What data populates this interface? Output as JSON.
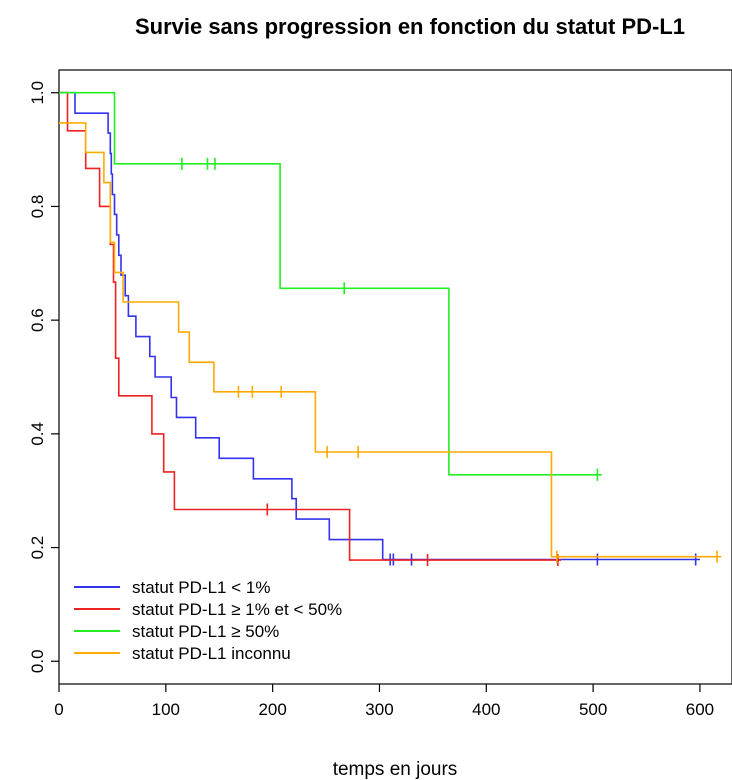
{
  "chart_data": {
    "type": "line",
    "title": "Survie sans progression en fonction du statut PD-L1",
    "xlabel": "temps en jours",
    "ylabel": "",
    "xlim": [
      0,
      630
    ],
    "ylim": [
      -0.04,
      1.04
    ],
    "x_ticks": [
      "0",
      "100",
      "200",
      "300",
      "400",
      "500",
      "600"
    ],
    "y_ticks": [
      "0.0",
      "0.2",
      "0.4",
      "0.6",
      "0.8",
      "1.0"
    ],
    "legend_position": "bottom-left",
    "series": [
      {
        "name": "statut PD-L1 < 1%",
        "color": "#3333ee",
        "steps": [
          [
            0,
            1.0
          ],
          [
            15,
            0.964
          ],
          [
            46,
            0.929
          ],
          [
            48,
            0.893
          ],
          [
            49,
            0.857
          ],
          [
            50,
            0.821
          ],
          [
            52,
            0.786
          ],
          [
            54,
            0.75
          ],
          [
            56,
            0.714
          ],
          [
            58,
            0.679
          ],
          [
            62,
            0.643
          ],
          [
            65,
            0.607
          ],
          [
            72,
            0.571
          ],
          [
            85,
            0.536
          ],
          [
            90,
            0.5
          ],
          [
            105,
            0.464
          ],
          [
            110,
            0.429
          ],
          [
            128,
            0.393
          ],
          [
            150,
            0.357
          ],
          [
            182,
            0.321
          ],
          [
            218,
            0.286
          ],
          [
            222,
            0.25
          ],
          [
            253,
            0.214
          ],
          [
            303,
            0.179
          ],
          [
            600,
            0.179
          ]
        ],
        "censored": [
          [
            310,
            0.179
          ],
          [
            313,
            0.179
          ],
          [
            330,
            0.179
          ],
          [
            504,
            0.179
          ],
          [
            596,
            0.179
          ]
        ]
      },
      {
        "name": "statut PD-L1 ≥ 1% et < 50%",
        "color": "#ee2222",
        "steps": [
          [
            0,
            1.0
          ],
          [
            8,
            0.933
          ],
          [
            25,
            0.867
          ],
          [
            38,
            0.8
          ],
          [
            48,
            0.733
          ],
          [
            51,
            0.667
          ],
          [
            53,
            0.533
          ],
          [
            56,
            0.467
          ],
          [
            87,
            0.4
          ],
          [
            98,
            0.333
          ],
          [
            108,
            0.267
          ],
          [
            272,
            0.178
          ],
          [
            470,
            0.178
          ]
        ],
        "censored": [
          [
            195,
            0.267
          ],
          [
            345,
            0.178
          ],
          [
            467,
            0.178
          ]
        ]
      },
      {
        "name": "statut PD-L1 ≥ 50%",
        "color": "#22ee22",
        "steps": [
          [
            0,
            1.0
          ],
          [
            52,
            0.875
          ],
          [
            207,
            0.656
          ],
          [
            365,
            0.328
          ],
          [
            508,
            0.328
          ]
        ],
        "censored": [
          [
            115,
            0.875
          ],
          [
            139,
            0.875
          ],
          [
            146,
            0.875
          ],
          [
            267,
            0.656
          ],
          [
            504,
            0.328
          ]
        ]
      },
      {
        "name": "statut PD-L1 inconnu",
        "color": "#ffaa00",
        "steps": [
          [
            0,
            0.947
          ],
          [
            25,
            0.895
          ],
          [
            42,
            0.842
          ],
          [
            48,
            0.737
          ],
          [
            52,
            0.684
          ],
          [
            60,
            0.632
          ],
          [
            112,
            0.579
          ],
          [
            122,
            0.526
          ],
          [
            145,
            0.474
          ],
          [
            240,
            0.368
          ],
          [
            461,
            0.184
          ],
          [
            620,
            0.184
          ]
        ],
        "censored": [
          [
            168,
            0.474
          ],
          [
            181,
            0.474
          ],
          [
            208,
            0.474
          ],
          [
            251,
            0.368
          ],
          [
            280,
            0.368
          ],
          [
            466,
            0.184
          ],
          [
            616,
            0.184
          ]
        ]
      }
    ]
  }
}
